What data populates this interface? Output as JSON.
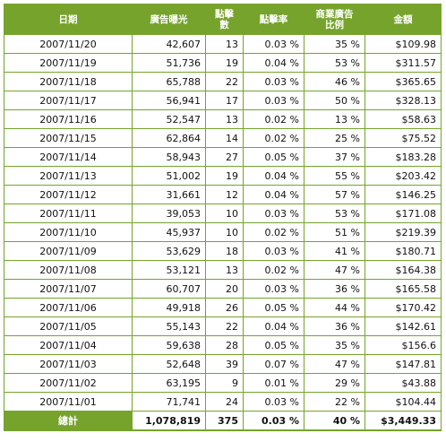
{
  "table": {
    "headers": [
      "日期",
      "廣告曝光",
      "點擊數",
      "點擊率",
      "商業廣告\n比例",
      "金額"
    ],
    "rows": [
      [
        "2007/11/20",
        "42,607",
        "13",
        "0.03 %",
        "35 %",
        "$109.98"
      ],
      [
        "2007/11/19",
        "51,736",
        "19",
        "0.04 %",
        "53 %",
        "$311.57"
      ],
      [
        "2007/11/18",
        "65,788",
        "22",
        "0.03 %",
        "46 %",
        "$365.65"
      ],
      [
        "2007/11/17",
        "56,941",
        "17",
        "0.03 %",
        "50 %",
        "$328.13"
      ],
      [
        "2007/11/16",
        "52,547",
        "13",
        "0.02 %",
        "13 %",
        "$58.63"
      ],
      [
        "2007/11/15",
        "62,864",
        "14",
        "0.02 %",
        "25 %",
        "$75.52"
      ],
      [
        "2007/11/14",
        "58,943",
        "27",
        "0.05 %",
        "37 %",
        "$183.28"
      ],
      [
        "2007/11/13",
        "51,002",
        "19",
        "0.04 %",
        "55 %",
        "$203.42"
      ],
      [
        "2007/11/12",
        "31,661",
        "12",
        "0.04 %",
        "57 %",
        "$146.25"
      ],
      [
        "2007/11/11",
        "39,053",
        "10",
        "0.03 %",
        "53 %",
        "$171.08"
      ],
      [
        "2007/11/10",
        "45,937",
        "10",
        "0.02 %",
        "51 %",
        "$219.39"
      ],
      [
        "2007/11/09",
        "53,629",
        "18",
        "0.03 %",
        "41 %",
        "$180.71"
      ],
      [
        "2007/11/08",
        "53,121",
        "13",
        "0.02 %",
        "47 %",
        "$164.38"
      ],
      [
        "2007/11/07",
        "60,707",
        "20",
        "0.03 %",
        "36 %",
        "$165.58"
      ],
      [
        "2007/11/06",
        "49,918",
        "26",
        "0.05 %",
        "44 %",
        "$170.42"
      ],
      [
        "2007/11/05",
        "55,143",
        "22",
        "0.04 %",
        "36 %",
        "$142.61"
      ],
      [
        "2007/11/04",
        "59,638",
        "28",
        "0.05 %",
        "35 %",
        "$156.6"
      ],
      [
        "2007/11/03",
        "52,648",
        "39",
        "0.07 %",
        "47 %",
        "$147.81"
      ],
      [
        "2007/11/02",
        "63,195",
        "9",
        "0.01 %",
        "29 %",
        "$43.88"
      ],
      [
        "2007/11/01",
        "71,741",
        "24",
        "0.03 %",
        "22 %",
        "$104.44"
      ]
    ],
    "total": [
      "總計",
      "1,078,819",
      "375",
      "0.03 %",
      "40 %",
      "$3,449.33"
    ]
  }
}
